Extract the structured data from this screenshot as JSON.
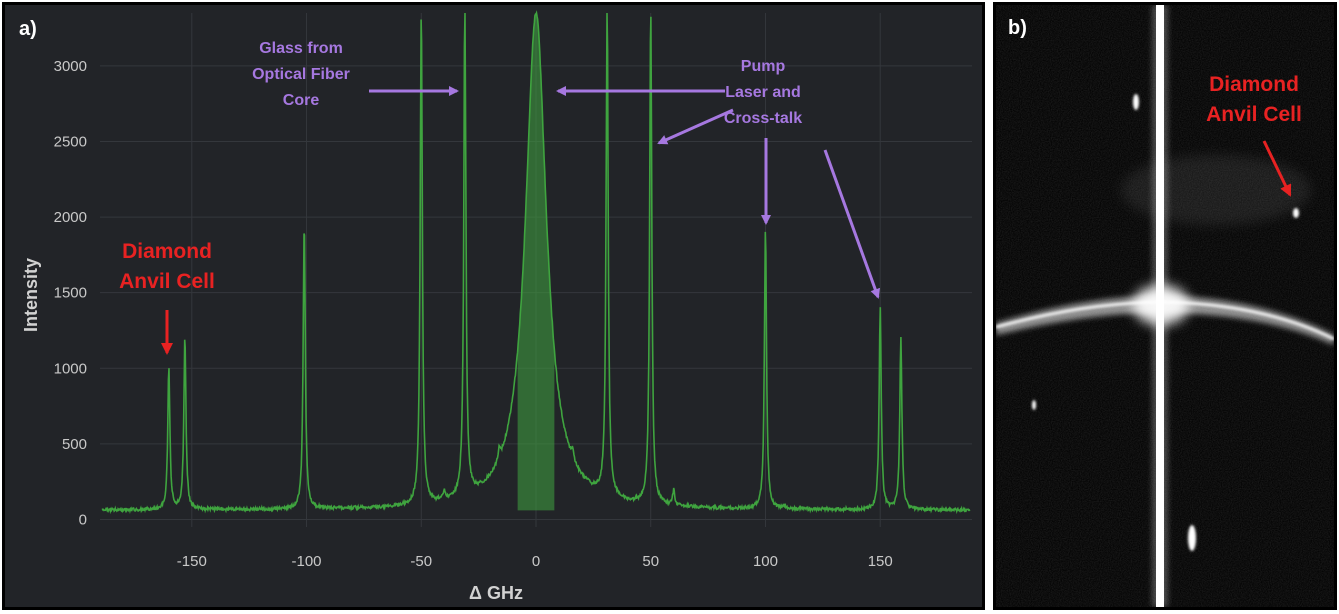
{
  "panel_a": {
    "label": "a)",
    "annotations": {
      "glass_lines": [
        "Glass from",
        "Optical Fiber",
        "Core"
      ],
      "pump_lines": [
        "Pump",
        "Laser and",
        "Cross-talk"
      ],
      "diamond_lines": [
        "Diamond",
        "Anvil Cell"
      ]
    }
  },
  "panel_b": {
    "label": "b)",
    "annotation_lines": [
      "Diamond",
      "Anvil Cell"
    ]
  },
  "colors": {
    "background": "#222428",
    "grid": "#34373c",
    "trace": "#3fa43f",
    "annotation_purple": "#a678e0",
    "annotation_red": "#e82222"
  },
  "chart_data": {
    "type": "line",
    "title": "",
    "xlabel": "Δ GHz",
    "ylabel": "Intensity",
    "xlim": [
      -190,
      190
    ],
    "ylim": [
      -50,
      3350
    ],
    "xticks": [
      -150,
      -100,
      -50,
      0,
      50,
      100,
      150
    ],
    "yticks": [
      0,
      500,
      1000,
      1500,
      2000,
      2500,
      3000
    ],
    "grid": true,
    "baseline": 60,
    "peaks": [
      {
        "x": -160,
        "y": 1010
      },
      {
        "x": -153,
        "y": 1210
      },
      {
        "x": -101,
        "y": 1960
      },
      {
        "x": -50,
        "y": 3350
      },
      {
        "x": -40,
        "y": 110
      },
      {
        "x": -31,
        "y": 3350
      },
      {
        "x": -16,
        "y": 130
      },
      {
        "x": 0,
        "y": 3350
      },
      {
        "x": 16,
        "y": 130
      },
      {
        "x": 31,
        "y": 3350
      },
      {
        "x": 50,
        "y": 3350
      },
      {
        "x": 60,
        "y": 160
      },
      {
        "x": 100,
        "y": 1920
      },
      {
        "x": 108,
        "y": 80
      },
      {
        "x": 150,
        "y": 1390
      },
      {
        "x": 159,
        "y": 1190
      }
    ]
  }
}
